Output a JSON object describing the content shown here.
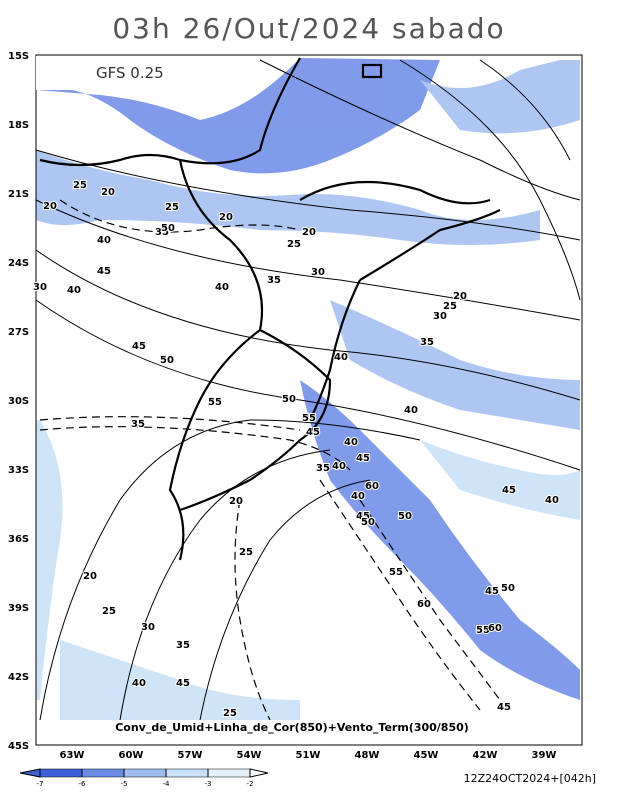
{
  "title": "03h 26/Out/2024 sabado",
  "model": "GFS 0.25",
  "lat_labels": [
    "15S",
    "18S",
    "21S",
    "24S",
    "27S",
    "30S",
    "33S",
    "36S",
    "39S",
    "42S",
    "45S"
  ],
  "lon_labels": [
    "63W",
    "60W",
    "57W",
    "54W",
    "51W",
    "48W",
    "45W",
    "42W",
    "39W"
  ],
  "caption": "Conv_de_Umid+Linha_de_Cor(850)+Vento_Term(300/850)",
  "colorbar": {
    "ticks": [
      -7,
      -6,
      -5,
      -4,
      -3,
      -2
    ],
    "colors": [
      "#3f5fd8",
      "#6b8ae6",
      "#9fbdf0",
      "#c6e0f7",
      "#e2f1fb"
    ]
  },
  "timestamp": "12Z24OCT2024+[042h]",
  "contour_labels": [
    25,
    20,
    20,
    25,
    20,
    35,
    50,
    40,
    20,
    25,
    45,
    30,
    35,
    40,
    30,
    40,
    20,
    25,
    30,
    35,
    45,
    50,
    40,
    55,
    50,
    40,
    55,
    45,
    35,
    40,
    45,
    35,
    40,
    60,
    40,
    45,
    40,
    20,
    45,
    50,
    50,
    25,
    55,
    20,
    50,
    45,
    60,
    25,
    30,
    55,
    60,
    35,
    40,
    45,
    45,
    25
  ]
}
